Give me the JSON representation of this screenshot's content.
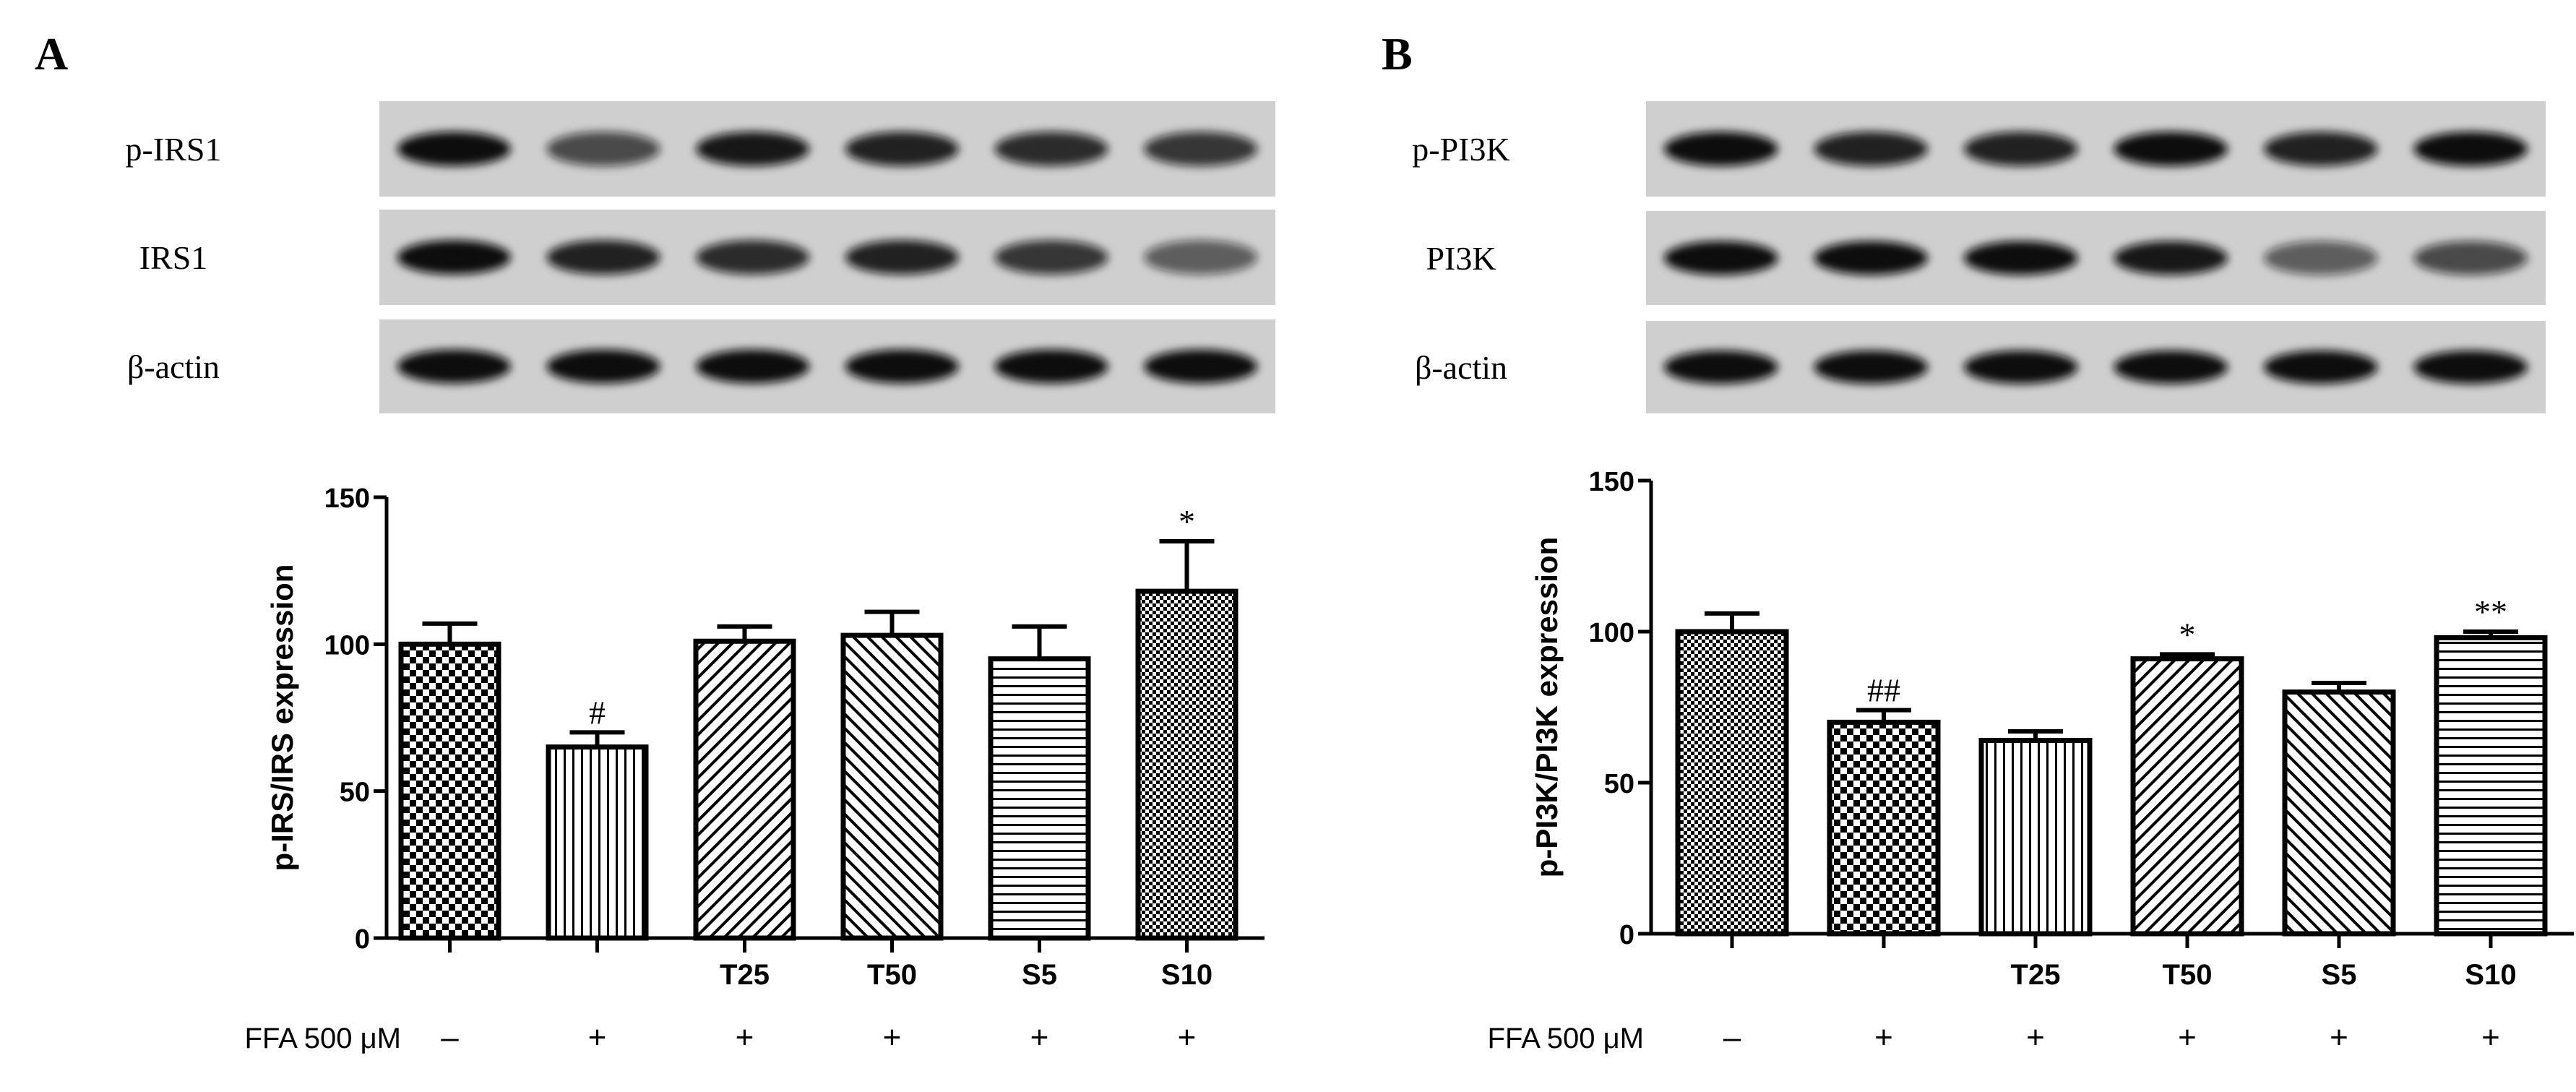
{
  "chart_data": [
    {
      "panel": "A",
      "type": "bar",
      "blot_labels": [
        "p-IRS1",
        "IRS1",
        "β-actin"
      ],
      "ylabel": "p-IRS/IRS expression",
      "ylim": [
        0,
        150
      ],
      "yticks": [
        0,
        50,
        100,
        150
      ],
      "categories": [
        "",
        "",
        "T25",
        "T50",
        "S5",
        "S10"
      ],
      "ffa_label": "FFA 500 μM",
      "ffa_signs": [
        "–",
        "+",
        "+",
        "+",
        "+",
        "+"
      ],
      "values": [
        100,
        65,
        101,
        103,
        95,
        118
      ],
      "errors": [
        7,
        5,
        5,
        8,
        11,
        17
      ],
      "annotations": [
        "",
        "#",
        "",
        "",
        "",
        "*"
      ],
      "patterns": [
        "checker",
        "vlines",
        "diag-fwd",
        "diag-back",
        "hlines",
        "dots"
      ]
    },
    {
      "panel": "B",
      "type": "bar",
      "blot_labels": [
        "p-PI3K",
        "PI3K",
        "β-actin"
      ],
      "ylabel": "p-PI3K/PI3K expression",
      "ylim": [
        0,
        150
      ],
      "yticks": [
        0,
        50,
        100,
        150
      ],
      "categories": [
        "",
        "",
        "T25",
        "T50",
        "S5",
        "S10"
      ],
      "ffa_label": "FFA 500 μM",
      "ffa_signs": [
        "–",
        "+",
        "+",
        "+",
        "+",
        "+"
      ],
      "values": [
        100,
        70,
        64,
        91,
        80,
        98
      ],
      "errors": [
        6,
        4,
        3,
        1.5,
        3,
        2
      ],
      "annotations": [
        "",
        "##",
        "",
        "*",
        "",
        "**"
      ],
      "patterns": [
        "dots",
        "checker",
        "vlines",
        "diag-fwd",
        "diag-back",
        "hlines"
      ]
    }
  ]
}
